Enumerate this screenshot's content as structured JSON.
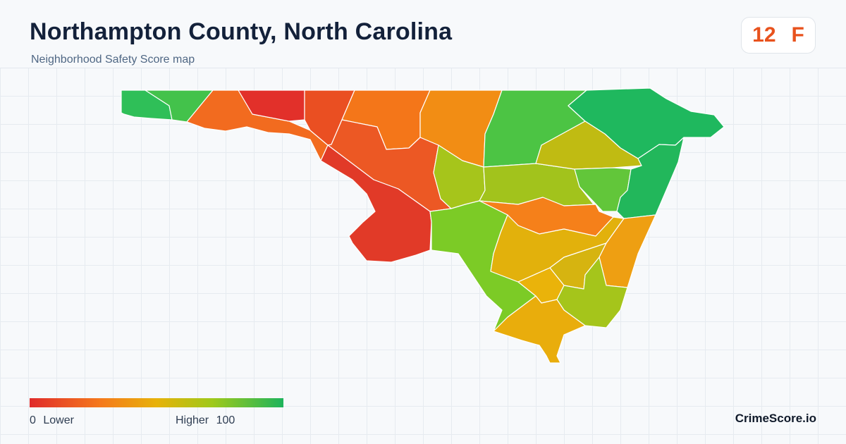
{
  "header": {
    "title": "Northampton County, North Carolina",
    "subtitle": "Neighborhood Safety Score map"
  },
  "score": {
    "value": "12",
    "grade": "F",
    "color": "#e8521d"
  },
  "legend": {
    "min_value": "0",
    "min_label": "Lower",
    "max_label": "Higher",
    "max_value": "100",
    "colors": [
      "#e02b2b",
      "#f57a1c",
      "#e7b20a",
      "#9fc91a",
      "#1eb45c"
    ]
  },
  "brand": "CrimeScore.io",
  "map": {
    "regions": [
      {
        "name": "west-tip",
        "color": "#2fbf58"
      },
      {
        "name": "north-west-green",
        "color": "#43c24b"
      },
      {
        "name": "west-orange",
        "color": "#f26b1f"
      },
      {
        "name": "north-red",
        "color": "#e2302a"
      },
      {
        "name": "north-red-orange",
        "color": "#ea4f22"
      },
      {
        "name": "north-orange",
        "color": "#f47619"
      },
      {
        "name": "north-orange-2",
        "color": "#f28d14"
      },
      {
        "name": "north-green",
        "color": "#4cc444"
      },
      {
        "name": "north-east-green",
        "color": "#1fb85e"
      },
      {
        "name": "central-red-orange",
        "color": "#ec5824"
      },
      {
        "name": "south-west-red",
        "color": "#e13a28"
      },
      {
        "name": "central-yellow-green",
        "color": "#a6c51b"
      },
      {
        "name": "central-yellow-green-2",
        "color": "#a2c31c"
      },
      {
        "name": "central-olive",
        "color": "#c0bb12"
      },
      {
        "name": "east-green",
        "color": "#62c63a"
      },
      {
        "name": "east-green-2",
        "color": "#22b75b"
      },
      {
        "name": "central-orange",
        "color": "#f5801a"
      },
      {
        "name": "south-green",
        "color": "#7ccb26"
      },
      {
        "name": "south-yellow",
        "color": "#e2b10c"
      },
      {
        "name": "south-yellow-2",
        "color": "#d6b410"
      },
      {
        "name": "south-east-orange",
        "color": "#ee9f12"
      },
      {
        "name": "south-yellow-3",
        "color": "#eab30a"
      },
      {
        "name": "south-green-2",
        "color": "#a5c51b"
      },
      {
        "name": "south-tip-yellow",
        "color": "#e9ad0c"
      }
    ]
  }
}
